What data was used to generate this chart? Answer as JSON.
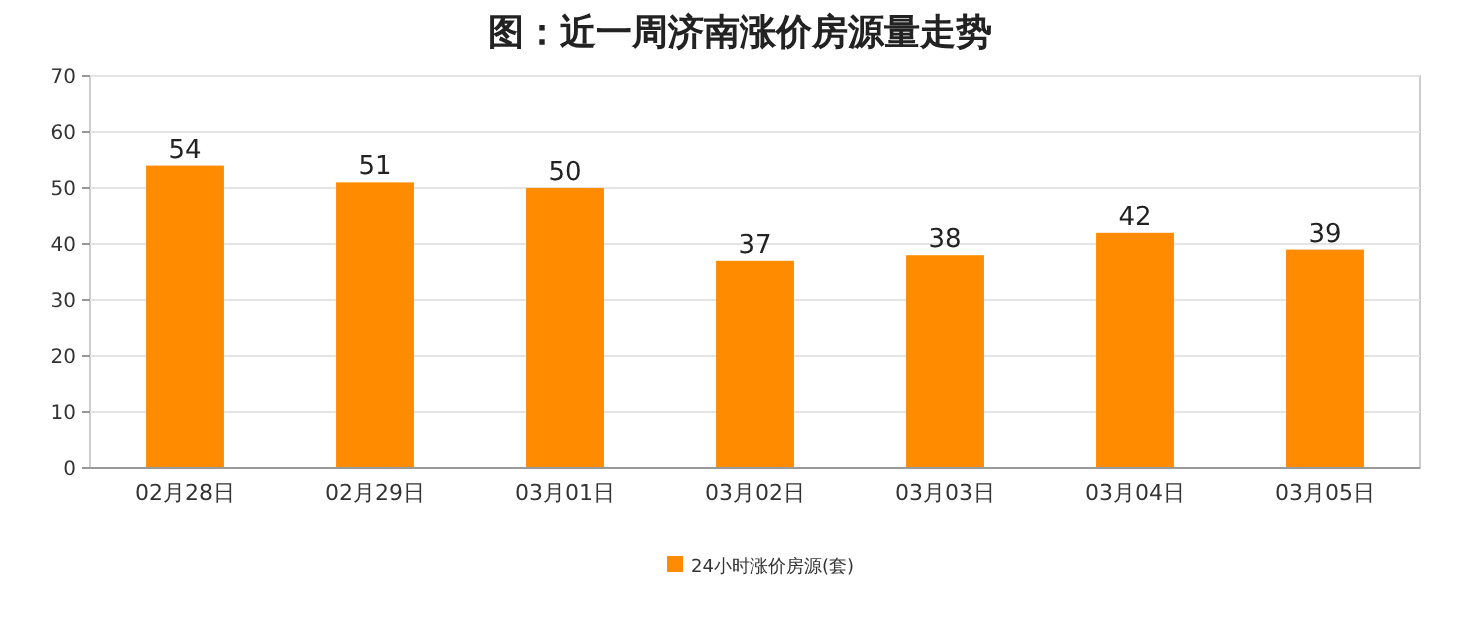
{
  "chart_data": {
    "type": "bar",
    "title": "图：近一周济南涨价房源量走势",
    "categories": [
      "02月28日",
      "02月29日",
      "03月01日",
      "03月02日",
      "03月03日",
      "03月04日",
      "03月05日"
    ],
    "series": [
      {
        "name": "24小时涨价房源(套)",
        "color": "#ff8c00",
        "values": [
          54,
          51,
          50,
          37,
          38,
          42,
          39
        ]
      }
    ],
    "ylim": [
      0,
      70
    ],
    "yticks": [
      0,
      10,
      20,
      30,
      40,
      50,
      60,
      70
    ],
    "grid": "y",
    "data_labels": true,
    "legend": "bottom"
  }
}
